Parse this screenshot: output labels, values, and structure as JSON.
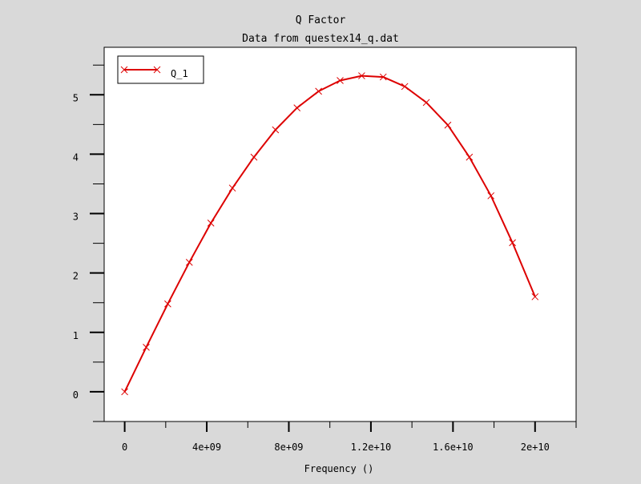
{
  "chart_data": {
    "type": "line",
    "title": "Q Factor",
    "subtitle": "Data from questex14_q.dat",
    "xlabel": "Frequency ()",
    "ylabel": "",
    "xlim": [
      -1000000000,
      22000000000
    ],
    "ylim": [
      -0.5,
      5.8
    ],
    "x_ticks": [
      {
        "value": 0,
        "label": "0"
      },
      {
        "value": 4000000000,
        "label": "4e+09"
      },
      {
        "value": 8000000000,
        "label": "8e+09"
      },
      {
        "value": 12000000000,
        "label": "1.2e+10"
      },
      {
        "value": 16000000000,
        "label": "1.6e+10"
      },
      {
        "value": 20000000000,
        "label": "2e+10"
      }
    ],
    "y_ticks": [
      {
        "value": 0,
        "label": "0"
      },
      {
        "value": 1,
        "label": "1"
      },
      {
        "value": 2,
        "label": "2"
      },
      {
        "value": 3,
        "label": "3"
      },
      {
        "value": 4,
        "label": "4"
      },
      {
        "value": 5,
        "label": "5"
      }
    ],
    "grid": false,
    "legend_position": "top-left",
    "series": [
      {
        "name": "Q_1",
        "color": "#dd0000",
        "marker": "x",
        "x": [
          0,
          1050000000,
          2100000000,
          3150000000,
          4200000000,
          5250000000,
          6300000000,
          7350000000,
          8400000000,
          9450000000,
          10500000000,
          11550000000,
          12600000000,
          13650000000,
          14700000000,
          15750000000,
          16800000000,
          17850000000,
          18900000000,
          20000000000
        ],
        "y": [
          0.0,
          0.75,
          1.48,
          2.18,
          2.84,
          3.43,
          3.95,
          4.41,
          4.78,
          5.06,
          5.24,
          5.32,
          5.3,
          5.14,
          4.87,
          4.49,
          3.95,
          3.3,
          2.51,
          1.6
        ]
      }
    ]
  }
}
